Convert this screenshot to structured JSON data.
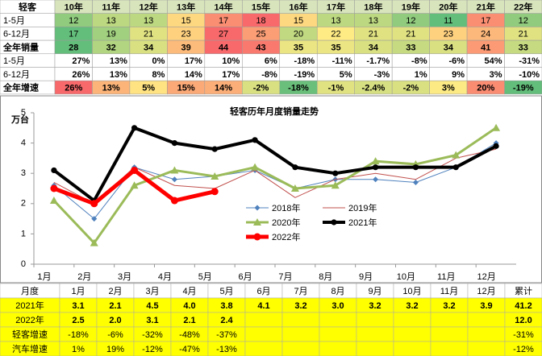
{
  "top_table": {
    "header": [
      "轻客",
      "10年",
      "11年",
      "12年",
      "13年",
      "14年",
      "15年",
      "16年",
      "17年",
      "18年",
      "19年",
      "20年",
      "21年",
      "22年"
    ],
    "rows": [
      [
        "1-5月",
        "12",
        "13",
        "13",
        "15",
        "17",
        "18",
        "15",
        "13",
        "13",
        "12",
        "11",
        "17",
        "12"
      ],
      [
        "6-12月",
        "17",
        "19",
        "21",
        "23",
        "27",
        "25",
        "20",
        "22",
        "21",
        "21",
        "23",
        "24",
        "21"
      ],
      [
        "全年销量",
        "28",
        "32",
        "34",
        "39",
        "44",
        "43",
        "35",
        "35",
        "34",
        "33",
        "34",
        "41",
        "33"
      ],
      [
        "1-5月",
        "27%",
        "13%",
        "0%",
        "17%",
        "10%",
        "6%",
        "-18%",
        "-11%",
        "-1.7%",
        "-8%",
        "-6%",
        "54%",
        "-31%"
      ],
      [
        "6-12月",
        "26%",
        "13%",
        "8%",
        "14%",
        "17%",
        "-8%",
        "-19%",
        "5%",
        "-3%",
        "1%",
        "9%",
        "3%",
        "-10%"
      ],
      [
        "全年增速",
        "26%",
        "13%",
        "5%",
        "15%",
        "14%",
        "-2%",
        "-18%",
        "-1%",
        "-2.4%",
        "-2%",
        "3%",
        "20%",
        "-19%"
      ]
    ]
  },
  "chart_data": {
    "type": "line",
    "title": "轻客历年月度销量走势",
    "y_label": "万台",
    "categories": [
      "1月",
      "2月",
      "3月",
      "4月",
      "5月",
      "6月",
      "7月",
      "8月",
      "9月",
      "10月",
      "11月",
      "12月"
    ],
    "ylim": [
      0,
      5
    ],
    "yticks": [
      0,
      1,
      2,
      3,
      4,
      5
    ],
    "series": [
      {
        "name": "2018年",
        "color": "#4f81bd",
        "marker": "diamond",
        "width": 1,
        "values": [
          2.6,
          1.5,
          3.2,
          2.8,
          2.9,
          3.1,
          2.5,
          2.8,
          2.8,
          2.7,
          3.2,
          4.0
        ]
      },
      {
        "name": "2019年",
        "color": "#c0504d",
        "marker": "none",
        "width": 1,
        "values": [
          2.7,
          2.0,
          3.2,
          2.6,
          2.5,
          3.1,
          2.2,
          2.8,
          3.0,
          2.8,
          3.5,
          3.8
        ]
      },
      {
        "name": "2020年",
        "color": "#9bbb59",
        "marker": "triangle",
        "width": 3,
        "values": [
          2.1,
          0.7,
          2.6,
          3.1,
          2.9,
          3.2,
          2.5,
          2.6,
          3.4,
          3.3,
          3.6,
          4.5
        ]
      },
      {
        "name": "2021年",
        "color": "#000000",
        "marker": "circle",
        "width": 4,
        "values": [
          3.1,
          2.1,
          4.5,
          4.0,
          3.8,
          4.1,
          3.2,
          3.0,
          3.2,
          3.2,
          3.2,
          3.9
        ]
      },
      {
        "name": "2022年",
        "color": "#ff0000",
        "marker": "circle",
        "width": 5,
        "values": [
          2.5,
          2.0,
          3.1,
          2.1,
          2.4,
          null,
          null,
          null,
          null,
          null,
          null,
          null
        ]
      }
    ]
  },
  "bottom_table": {
    "header": [
      "月度",
      "1月",
      "2月",
      "3月",
      "4月",
      "5月",
      "6月",
      "7月",
      "8月",
      "9月",
      "10月",
      "11月",
      "12月",
      "累计"
    ],
    "rows": [
      [
        "2021年",
        "3.1",
        "2.1",
        "4.5",
        "4.0",
        "3.8",
        "4.1",
        "3.2",
        "3.0",
        "3.2",
        "3.2",
        "3.2",
        "3.9",
        "41.2"
      ],
      [
        "2022年",
        "2.5",
        "2.0",
        "3.1",
        "2.1",
        "2.4",
        null,
        null,
        null,
        null,
        null,
        null,
        null,
        "12.0"
      ],
      [
        "轻客增速",
        "-18%",
        "-6%",
        "-32%",
        "-48%",
        "-37%",
        null,
        null,
        null,
        null,
        null,
        null,
        null,
        "-31%"
      ],
      [
        "汽车增速",
        "1%",
        "19%",
        "-12%",
        "-47%",
        "-13%",
        null,
        null,
        null,
        null,
        null,
        null,
        null,
        "-12%"
      ]
    ]
  }
}
